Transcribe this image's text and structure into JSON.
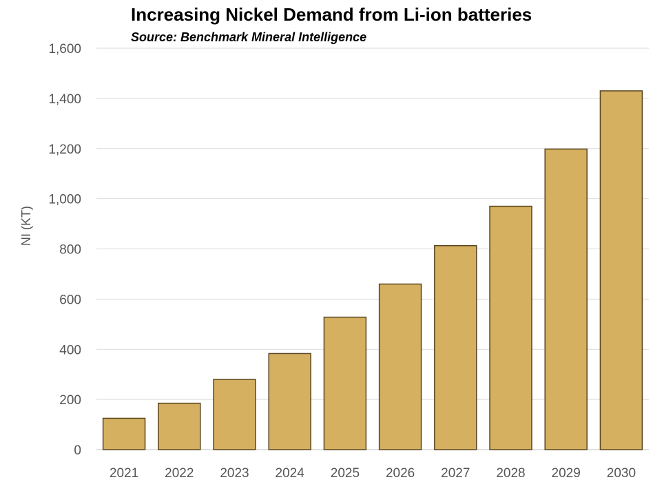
{
  "chart_data": {
    "type": "bar",
    "title": "Increasing Nickel Demand from Li-ion batteries",
    "subtitle": "Source: Benchmark Mineral Intelligence",
    "ylabel": "NI (KT)",
    "xlabel": "",
    "categories": [
      "2021",
      "2022",
      "2023",
      "2024",
      "2025",
      "2026",
      "2027",
      "2028",
      "2029",
      "2030"
    ],
    "values": [
      125,
      185,
      280,
      383,
      528,
      660,
      813,
      970,
      1198,
      1430
    ],
    "ylim": [
      0,
      1600
    ],
    "yticks": [
      0,
      200,
      400,
      600,
      800,
      1000,
      1200,
      1400,
      1600
    ],
    "ytick_labels": [
      "0",
      "200",
      "400",
      "600",
      "800",
      "1,000",
      "1,200",
      "1,400",
      "1,600"
    ],
    "grid": true,
    "legend": "none",
    "colors": {
      "bar_fill": "#D4B060",
      "bar_stroke": "#5A4520",
      "grid": "#D9D9D9",
      "axis": "#BFBFBF"
    }
  }
}
